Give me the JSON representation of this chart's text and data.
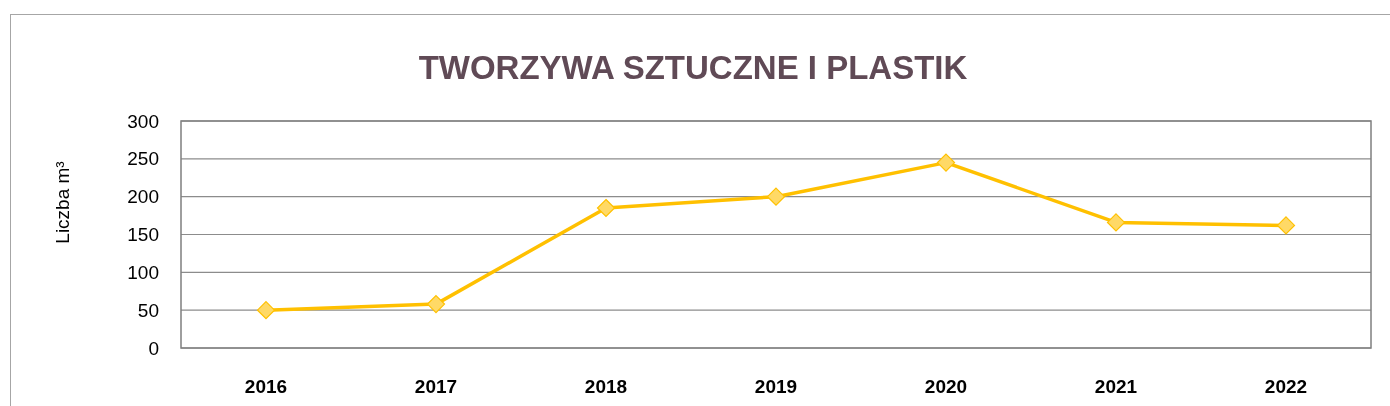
{
  "chart_data": {
    "type": "line",
    "title": "TWORZYWA SZTUCZNE I PLASTIK",
    "ylabel": "Liczba m³",
    "categories": [
      "2016",
      "2017",
      "2018",
      "2019",
      "2020",
      "2021",
      "2022"
    ],
    "series": [
      {
        "color": "#ffc000",
        "values": [
          50,
          58,
          185,
          200,
          245,
          166,
          162
        ]
      }
    ],
    "ylim": [
      0,
      300
    ],
    "yticks": [
      0,
      50,
      100,
      150,
      200,
      250,
      300
    ],
    "grid": "y",
    "marker": "diamond",
    "line_style": "solid"
  }
}
